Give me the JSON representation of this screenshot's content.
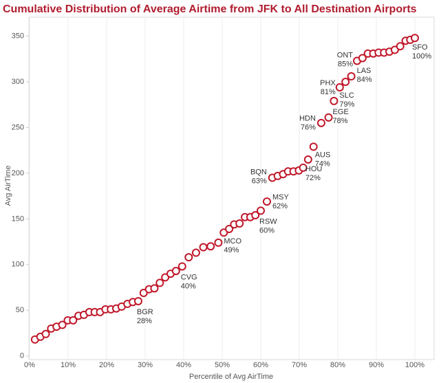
{
  "chart_data": {
    "type": "scatter",
    "title": "Cumulative Distribution of Average Airtime from JFK to All Destination Airports",
    "x_label": "Percentile of Avg AirTime",
    "y_label": "Avg AirTime",
    "xlim": [
      0,
      105
    ],
    "ylim": [
      -4,
      370
    ],
    "xticks": [
      {
        "value": 0,
        "label": "0%"
      },
      {
        "value": 10,
        "label": "10%"
      },
      {
        "value": 20,
        "label": "20%"
      },
      {
        "value": 30,
        "label": "30%"
      },
      {
        "value": 40,
        "label": "40%"
      },
      {
        "value": 50,
        "label": "50%"
      },
      {
        "value": 60,
        "label": "60%"
      },
      {
        "value": 70,
        "label": "70%"
      },
      {
        "value": 80,
        "label": "80%"
      },
      {
        "value": 90,
        "label": "90%"
      },
      {
        "value": 100,
        "label": "100%"
      }
    ],
    "yticks": [
      0,
      50,
      100,
      150,
      200,
      250,
      300,
      350
    ],
    "grid": "x",
    "series": [
      {
        "color": "#c0182a",
        "x": [
          1.4,
          2.8,
          4.2,
          5.6,
          7.0,
          8.5,
          9.9,
          11.3,
          12.7,
          14.1,
          15.5,
          16.9,
          18.3,
          19.7,
          21.1,
          22.5,
          23.9,
          25.4,
          26.8,
          28.2,
          29.6,
          31.0,
          32.4,
          33.8,
          35.2,
          36.6,
          38.0,
          39.6,
          41.3,
          43.2,
          45.1,
          47.0,
          49.0,
          50.4,
          51.8,
          53.1,
          54.5,
          55.9,
          57.3,
          58.6,
          60.0,
          61.6,
          63.0,
          64.4,
          65.8,
          67.1,
          68.5,
          69.9,
          71.0,
          72.3,
          73.7,
          75.7,
          77.6,
          79.0,
          80.5,
          82.0,
          83.5,
          85.0,
          86.4,
          87.8,
          89.2,
          90.6,
          92.0,
          93.4,
          94.8,
          96.2,
          97.6,
          98.8,
          100.0
        ],
        "values": [
          18,
          21,
          24,
          30,
          32,
          34,
          39,
          39,
          44,
          45,
          48,
          48,
          48,
          51,
          51,
          52,
          54,
          57,
          59,
          60,
          69,
          73,
          74,
          80,
          86,
          90,
          93,
          98,
          108,
          113,
          119,
          120,
          124,
          135,
          139,
          144,
          145,
          152,
          152,
          154,
          159,
          169,
          195,
          197,
          199,
          202,
          202,
          203,
          206,
          215,
          229,
          255,
          261,
          279,
          294,
          300,
          306,
          323,
          326,
          331,
          331,
          332,
          332,
          333,
          335,
          339,
          345,
          346,
          348
        ],
        "point_labels": [
          null,
          null,
          null,
          null,
          null,
          null,
          null,
          null,
          null,
          null,
          null,
          null,
          null,
          null,
          null,
          null,
          null,
          null,
          null,
          "BGR",
          null,
          null,
          null,
          null,
          null,
          null,
          null,
          "CVG",
          null,
          null,
          null,
          null,
          "MCO",
          null,
          null,
          null,
          null,
          null,
          null,
          null,
          "RSW",
          "MSY",
          "BQN",
          null,
          null,
          null,
          null,
          null,
          null,
          "HOU",
          "AUS",
          "HDN",
          "EGE",
          "SLC",
          "PHX",
          null,
          "LAS",
          "ONT",
          null,
          null,
          null,
          null,
          null,
          null,
          null,
          null,
          null,
          null,
          "SFO"
        ],
        "x_labels": [
          null,
          null,
          null,
          null,
          null,
          null,
          null,
          null,
          null,
          null,
          null,
          null,
          null,
          null,
          null,
          null,
          null,
          null,
          null,
          "28%",
          null,
          null,
          null,
          null,
          null,
          null,
          null,
          "40%",
          null,
          null,
          null,
          null,
          "49%",
          null,
          null,
          null,
          null,
          null,
          null,
          null,
          "60%",
          "62%",
          "63%",
          null,
          null,
          null,
          null,
          null,
          null,
          "72%",
          "74%",
          "76%",
          "78%",
          "79%",
          "81%",
          null,
          "84%",
          "85%",
          null,
          null,
          null,
          null,
          null,
          null,
          null,
          null,
          null,
          null,
          "100%"
        ]
      }
    ]
  }
}
